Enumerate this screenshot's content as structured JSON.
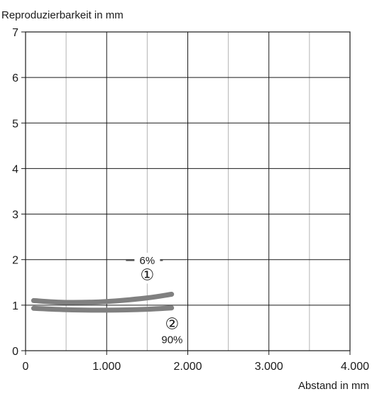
{
  "chart_data": {
    "type": "line",
    "ylabel": "Reproduzierbarkeit in mm",
    "xlabel": "Abstand in mm",
    "xlim": [
      0,
      4000
    ],
    "ylim": [
      0,
      7
    ],
    "grid": true,
    "x_major_ticks": [
      0,
      1000,
      2000,
      3000,
      4000
    ],
    "x_tick_labels": [
      "0",
      "1.000",
      "2.000",
      "3.000",
      "4.000"
    ],
    "x_minor_gridlines": [
      500,
      1500,
      2500,
      3500
    ],
    "y_ticks": [
      0,
      1,
      2,
      3,
      4,
      5,
      6,
      7
    ],
    "y_tick_labels": [
      "0",
      "1",
      "2",
      "3",
      "4",
      "5",
      "6",
      "7"
    ],
    "series": [
      {
        "name": "6%",
        "marker": "①",
        "color": "#808080",
        "x": [
          100,
          500,
          1000,
          1500,
          1800
        ],
        "y": [
          1.1,
          1.06,
          1.08,
          1.16,
          1.24
        ]
      },
      {
        "name": "90%",
        "marker": "②",
        "color": "#808080",
        "x": [
          100,
          500,
          1000,
          1500,
          1800
        ],
        "y": [
          0.93,
          0.9,
          0.89,
          0.91,
          0.94
        ]
      }
    ]
  }
}
